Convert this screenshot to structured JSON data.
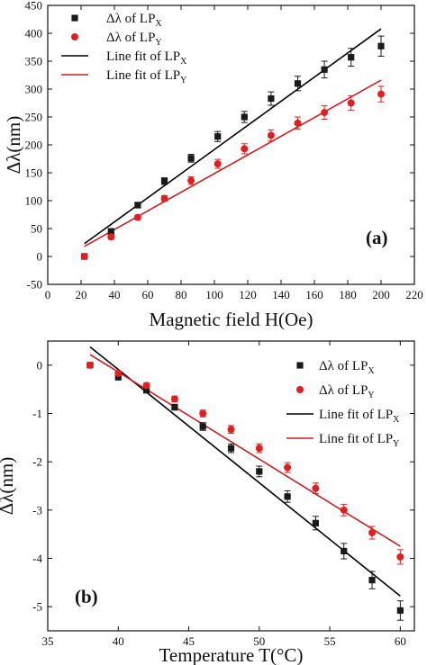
{
  "colors": {
    "series_x": "#1a1a1a",
    "series_y": "#e02020",
    "fit_x": "#000000",
    "fit_y": "#cc1f1f",
    "axis": "#111111"
  },
  "chart_data": [
    {
      "type": "scatter",
      "panel_label": "(a)",
      "xlabel": "Magnetic field H(Oe)",
      "ylabel": "Δλ(nm)",
      "xlim": [
        0,
        220
      ],
      "ylim": [
        -50,
        450
      ],
      "xticks": [
        0,
        20,
        40,
        60,
        80,
        100,
        120,
        140,
        160,
        180,
        200,
        220
      ],
      "yticks": [
        -50,
        0,
        50,
        100,
        150,
        200,
        250,
        300,
        350,
        400,
        450
      ],
      "grid": false,
      "legend_position": "top-left",
      "series": [
        {
          "name": "Δλ of LP",
          "sub": "X",
          "marker": "square",
          "x": [
            22,
            38,
            54,
            70,
            86,
            102,
            118,
            134,
            150,
            166,
            182,
            200
          ],
          "y": [
            0,
            45,
            92,
            135,
            176,
            215,
            250,
            283,
            310,
            335,
            357,
            377
          ],
          "err": [
            0,
            5,
            5,
            6,
            7,
            9,
            10,
            12,
            13,
            15,
            16,
            18
          ]
        },
        {
          "name": "Δλ of LP",
          "sub": "Y",
          "marker": "circle",
          "x": [
            22,
            38,
            54,
            70,
            86,
            102,
            118,
            134,
            150,
            166,
            182,
            200
          ],
          "y": [
            0,
            35,
            70,
            104,
            136,
            166,
            193,
            217,
            239,
            258,
            275,
            291
          ],
          "err": [
            0,
            4,
            4,
            5,
            7,
            8,
            9,
            10,
            11,
            12,
            13,
            14
          ]
        }
      ],
      "fits": [
        {
          "name": "Line fit of LP",
          "sub": "X",
          "x": [
            22,
            200
          ],
          "y": [
            23,
            408
          ]
        },
        {
          "name": "Line fit of LP",
          "sub": "Y",
          "x": [
            22,
            200
          ],
          "y": [
            18,
            316
          ]
        }
      ]
    },
    {
      "type": "scatter",
      "panel_label": "(b)",
      "xlabel": "Temperature T(°C)",
      "ylabel": "Δλ(nm)",
      "xlim": [
        35,
        61
      ],
      "ylim": [
        -5.5,
        0.5
      ],
      "xticks": [
        35,
        40,
        45,
        50,
        55,
        60
      ],
      "yticks": [
        -5,
        -4,
        -3,
        -2,
        -1,
        0
      ],
      "grid": false,
      "legend_position": "top-right",
      "series": [
        {
          "name": "Δλ of LP",
          "sub": "X",
          "marker": "square",
          "x": [
            38,
            40,
            42,
            44,
            46,
            48,
            50,
            52,
            54,
            56,
            58,
            60
          ],
          "y": [
            0,
            -0.25,
            -0.52,
            -0.87,
            -1.27,
            -1.72,
            -2.2,
            -2.72,
            -3.27,
            -3.85,
            -4.45,
            -5.08
          ],
          "err": [
            0.02,
            0.04,
            0.05,
            0.06,
            0.08,
            0.09,
            0.11,
            0.12,
            0.14,
            0.16,
            0.18,
            0.2
          ]
        },
        {
          "name": "Δλ of LP",
          "sub": "Y",
          "marker": "circle",
          "x": [
            38,
            40,
            42,
            44,
            46,
            48,
            50,
            52,
            54,
            56,
            58,
            60
          ],
          "y": [
            0,
            -0.17,
            -0.42,
            -0.7,
            -1.0,
            -1.33,
            -1.72,
            -2.12,
            -2.55,
            -3.0,
            -3.47,
            -3.97
          ],
          "err": [
            0.02,
            0.04,
            0.05,
            0.06,
            0.07,
            0.08,
            0.09,
            0.1,
            0.11,
            0.12,
            0.13,
            0.15
          ]
        }
      ],
      "fits": [
        {
          "name": "Line fit of LP",
          "sub": "X",
          "x": [
            38,
            60
          ],
          "y": [
            0.38,
            -4.78
          ]
        },
        {
          "name": "Line fit of LP",
          "sub": "Y",
          "x": [
            38,
            60
          ],
          "y": [
            0.22,
            -3.75
          ]
        }
      ]
    }
  ]
}
